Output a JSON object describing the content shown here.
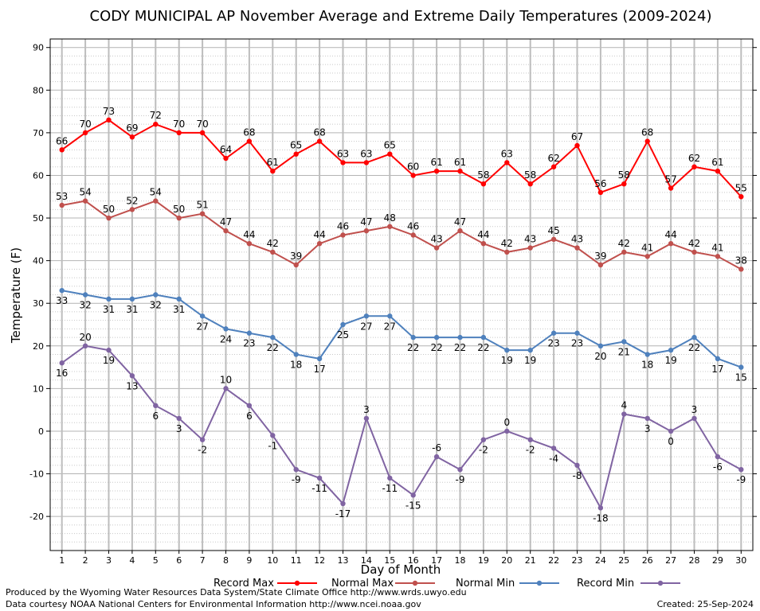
{
  "chart_data": {
    "type": "line",
    "title": "CODY MUNICIPAL AP November Average and Extreme Daily Temperatures (2009-2024)",
    "xlabel": "Day of Month",
    "ylabel": "Temperature (F)",
    "ylim": [
      -28,
      92
    ],
    "yticks": [
      -20,
      -10,
      0,
      10,
      20,
      30,
      40,
      50,
      60,
      70,
      80,
      90
    ],
    "xlim": [
      0.5,
      30.5
    ],
    "x": [
      1,
      2,
      3,
      4,
      5,
      6,
      7,
      8,
      9,
      10,
      11,
      12,
      13,
      14,
      15,
      16,
      17,
      18,
      19,
      20,
      21,
      22,
      23,
      24,
      25,
      26,
      27,
      28,
      29,
      30
    ],
    "grid": true,
    "legend": "bottom",
    "series": [
      {
        "name": "Record Max",
        "color": "#ff0000",
        "values": [
          66,
          70,
          73,
          69,
          72,
          70,
          70,
          64,
          68,
          61,
          65,
          68,
          63,
          63,
          65,
          60,
          61,
          61,
          58,
          63,
          58,
          62,
          67,
          56,
          58,
          68,
          57,
          62,
          61,
          55
        ]
      },
      {
        "name": "Normal Max",
        "color": "#c0504d",
        "values": [
          53,
          54,
          50,
          52,
          54,
          50,
          51,
          47,
          44,
          42,
          39,
          44,
          46,
          47,
          48,
          46,
          43,
          47,
          44,
          42,
          43,
          45,
          43,
          39,
          42,
          41,
          44,
          42,
          41,
          38
        ]
      },
      {
        "name": "Normal Min",
        "color": "#4f81bd",
        "values": [
          33,
          32,
          31,
          31,
          32,
          31,
          27,
          24,
          23,
          22,
          18,
          17,
          25,
          27,
          27,
          22,
          22,
          22,
          22,
          19,
          19,
          23,
          23,
          20,
          21,
          18,
          19,
          22,
          17,
          15
        ]
      },
      {
        "name": "Record Min",
        "color": "#8064a2",
        "values": [
          16,
          20,
          19,
          13,
          6,
          3,
          -2,
          10,
          6,
          -1,
          -9,
          -11,
          -17,
          3,
          -11,
          -15,
          -6,
          -9,
          -2,
          0,
          -2,
          -4,
          -8,
          -18,
          4,
          3,
          0,
          3,
          -6,
          -9
        ]
      }
    ]
  },
  "footer": {
    "produced_by": "Produced by the Wyoming Water Resources Data System/State Climate Office http://www.wrds.uwyo.edu",
    "data_courtesy": "Data courtesy NOAA National Centers for Environmental Information http://www.ncei.noaa.gov",
    "created": "Created:  25-Sep-2024"
  }
}
